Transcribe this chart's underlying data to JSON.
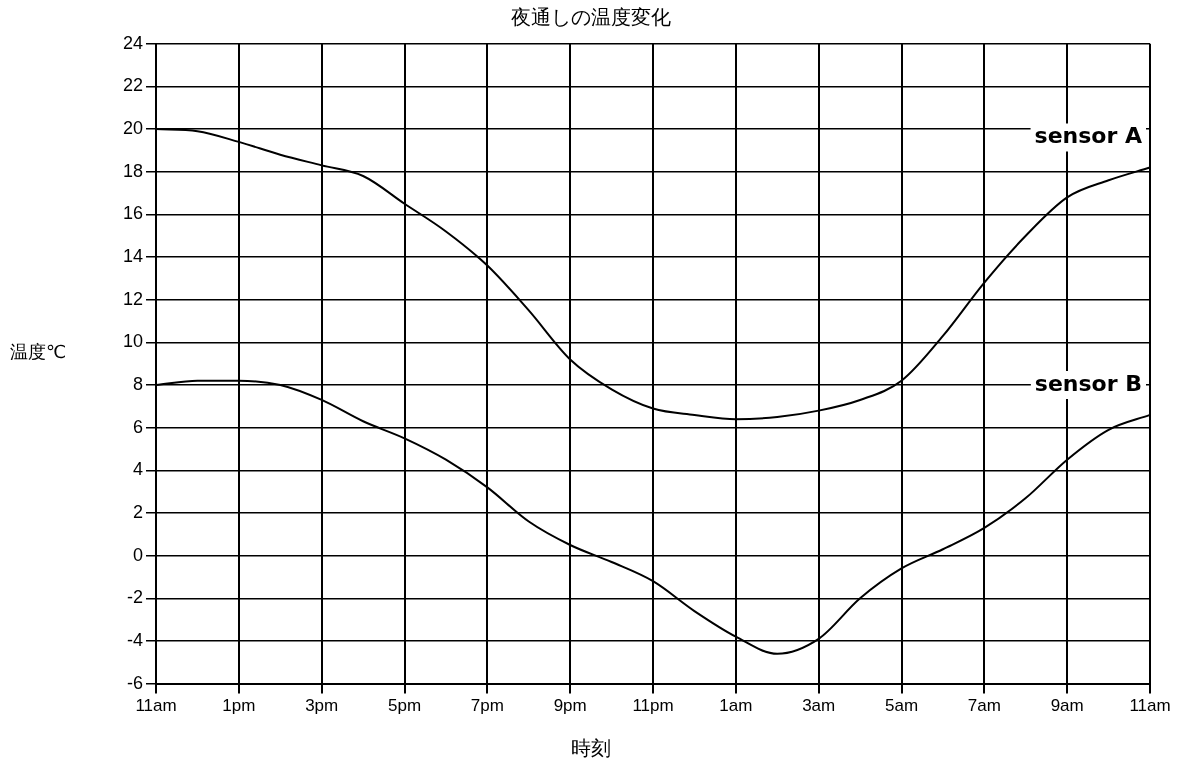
{
  "chart_data": {
    "type": "line",
    "title": "夜通しの温度変化",
    "xlabel": "時刻",
    "ylabel": "温度℃",
    "categories": [
      "11am",
      null,
      "1pm",
      null,
      "3pm",
      null,
      "5pm",
      null,
      "7pm",
      null,
      "9pm",
      null,
      "11pm",
      null,
      "1am",
      null,
      "3am",
      null,
      "5am",
      null,
      "7am",
      null,
      "9am",
      null,
      "11am"
    ],
    "ylim": [
      -6,
      24
    ],
    "yticks": [
      -6,
      -4,
      -2,
      0,
      2,
      4,
      6,
      8,
      10,
      12,
      14,
      16,
      18,
      20,
      22,
      24
    ],
    "grid": true,
    "legend": false,
    "marker": "none",
    "line_style": "solid",
    "series": [
      {
        "name": "sensor A",
        "color": "#000000",
        "values": [
          20,
          19.9,
          19.4,
          18.8,
          18.3,
          17.8,
          16.5,
          15.2,
          13.6,
          11.5,
          9.2,
          7.8,
          6.9,
          6.6,
          6.4,
          6.5,
          6.8,
          7.3,
          8.2,
          10.3,
          12.8,
          15,
          16.8,
          17.6,
          18.2
        ]
      },
      {
        "name": "sensor B",
        "color": "#000000",
        "values": [
          8,
          8.2,
          8.2,
          8,
          7.3,
          6.3,
          5.5,
          4.5,
          3.2,
          1.6,
          0.5,
          -0.3,
          -1.2,
          -2.6,
          -3.8,
          -4.6,
          -3.9,
          -2,
          -0.6,
          0.3,
          1.3,
          2.7,
          4.5,
          5.9,
          6.6
        ]
      }
    ]
  }
}
